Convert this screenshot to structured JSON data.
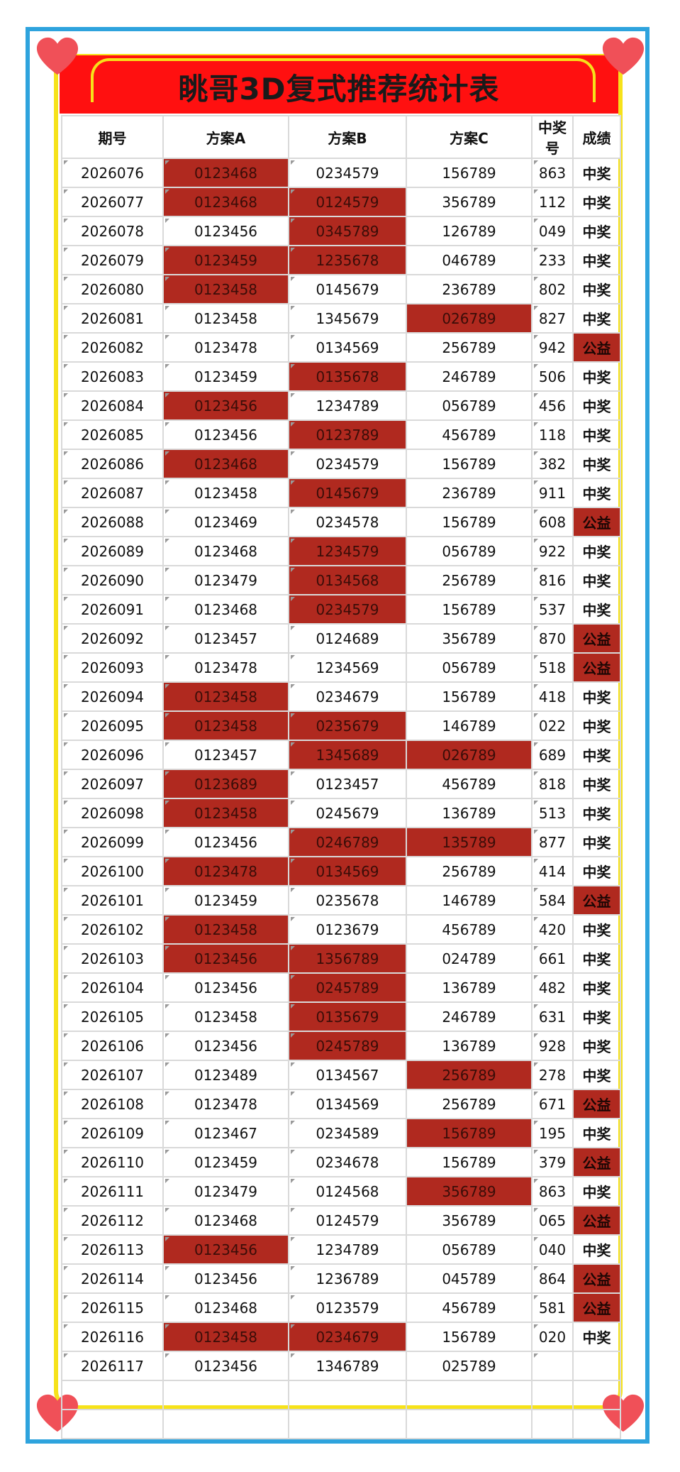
{
  "title": "眺哥3D复式推荐统计表",
  "colors": {
    "outer_border": "#2ea3dd",
    "inner_border": "#f6e21a",
    "title_bg": "#ff1010",
    "highlight": "#b0291f",
    "heart": "#f05058"
  },
  "icons": [
    "heart-icon"
  ],
  "headers": [
    "期号",
    "方案A",
    "方案B",
    "方案C",
    "中奖号",
    "成绩"
  ],
  "rows": [
    {
      "issue": "2026076",
      "a": "0123468",
      "b": "0234579",
      "c": "156789",
      "win": "863",
      "result": "中奖",
      "ha": true,
      "hb": false,
      "hc": false,
      "hr": false
    },
    {
      "issue": "2026077",
      "a": "0123468",
      "b": "0124579",
      "c": "356789",
      "win": "112",
      "result": "中奖",
      "ha": true,
      "hb": true,
      "hc": false,
      "hr": false
    },
    {
      "issue": "2026078",
      "a": "0123456",
      "b": "0345789",
      "c": "126789",
      "win": "049",
      "result": "中奖",
      "ha": false,
      "hb": true,
      "hc": false,
      "hr": false
    },
    {
      "issue": "2026079",
      "a": "0123459",
      "b": "1235678",
      "c": "046789",
      "win": "233",
      "result": "中奖",
      "ha": true,
      "hb": true,
      "hc": false,
      "hr": false
    },
    {
      "issue": "2026080",
      "a": "0123458",
      "b": "0145679",
      "c": "236789",
      "win": "802",
      "result": "中奖",
      "ha": true,
      "hb": false,
      "hc": false,
      "hr": false
    },
    {
      "issue": "2026081",
      "a": "0123458",
      "b": "1345679",
      "c": "026789",
      "win": "827",
      "result": "中奖",
      "ha": false,
      "hb": false,
      "hc": true,
      "hr": false
    },
    {
      "issue": "2026082",
      "a": "0123478",
      "b": "0134569",
      "c": "256789",
      "win": "942",
      "result": "公益",
      "ha": false,
      "hb": false,
      "hc": false,
      "hr": true
    },
    {
      "issue": "2026083",
      "a": "0123459",
      "b": "0135678",
      "c": "246789",
      "win": "506",
      "result": "中奖",
      "ha": false,
      "hb": true,
      "hc": false,
      "hr": false
    },
    {
      "issue": "2026084",
      "a": "0123456",
      "b": "1234789",
      "c": "056789",
      "win": "456",
      "result": "中奖",
      "ha": true,
      "hb": false,
      "hc": false,
      "hr": false
    },
    {
      "issue": "2026085",
      "a": "0123456",
      "b": "0123789",
      "c": "456789",
      "win": "118",
      "result": "中奖",
      "ha": false,
      "hb": true,
      "hc": false,
      "hr": false
    },
    {
      "issue": "2026086",
      "a": "0123468",
      "b": "0234579",
      "c": "156789",
      "win": "382",
      "result": "中奖",
      "ha": true,
      "hb": false,
      "hc": false,
      "hr": false
    },
    {
      "issue": "2026087",
      "a": "0123458",
      "b": "0145679",
      "c": "236789",
      "win": "911",
      "result": "中奖",
      "ha": false,
      "hb": true,
      "hc": false,
      "hr": false
    },
    {
      "issue": "2026088",
      "a": "0123469",
      "b": "0234578",
      "c": "156789",
      "win": "608",
      "result": "公益",
      "ha": false,
      "hb": false,
      "hc": false,
      "hr": true
    },
    {
      "issue": "2026089",
      "a": "0123468",
      "b": "1234579",
      "c": "056789",
      "win": "922",
      "result": "中奖",
      "ha": false,
      "hb": true,
      "hc": false,
      "hr": false
    },
    {
      "issue": "2026090",
      "a": "0123479",
      "b": "0134568",
      "c": "256789",
      "win": "816",
      "result": "中奖",
      "ha": false,
      "hb": true,
      "hc": false,
      "hr": false
    },
    {
      "issue": "2026091",
      "a": "0123468",
      "b": "0234579",
      "c": "156789",
      "win": "537",
      "result": "中奖",
      "ha": false,
      "hb": true,
      "hc": false,
      "hr": false
    },
    {
      "issue": "2026092",
      "a": "0123457",
      "b": "0124689",
      "c": "356789",
      "win": "870",
      "result": "公益",
      "ha": false,
      "hb": false,
      "hc": false,
      "hr": true
    },
    {
      "issue": "2026093",
      "a": "0123478",
      "b": "1234569",
      "c": "056789",
      "win": "518",
      "result": "公益",
      "ha": false,
      "hb": false,
      "hc": false,
      "hr": true
    },
    {
      "issue": "2026094",
      "a": "0123458",
      "b": "0234679",
      "c": "156789",
      "win": "418",
      "result": "中奖",
      "ha": true,
      "hb": false,
      "hc": false,
      "hr": false
    },
    {
      "issue": "2026095",
      "a": "0123458",
      "b": "0235679",
      "c": "146789",
      "win": "022",
      "result": "中奖",
      "ha": true,
      "hb": true,
      "hc": false,
      "hr": false
    },
    {
      "issue": "2026096",
      "a": "0123457",
      "b": "1345689",
      "c": "026789",
      "win": "689",
      "result": "中奖",
      "ha": false,
      "hb": true,
      "hc": true,
      "hr": false
    },
    {
      "issue": "2026097",
      "a": "0123689",
      "b": "0123457",
      "c": "456789",
      "win": "818",
      "result": "中奖",
      "ha": true,
      "hb": false,
      "hc": false,
      "hr": false
    },
    {
      "issue": "2026098",
      "a": "0123458",
      "b": "0245679",
      "c": "136789",
      "win": "513",
      "result": "中奖",
      "ha": true,
      "hb": false,
      "hc": false,
      "hr": false
    },
    {
      "issue": "2026099",
      "a": "0123456",
      "b": "0246789",
      "c": "135789",
      "win": "877",
      "result": "中奖",
      "ha": false,
      "hb": true,
      "hc": true,
      "hr": false
    },
    {
      "issue": "2026100",
      "a": "0123478",
      "b": "0134569",
      "c": "256789",
      "win": "414",
      "result": "中奖",
      "ha": true,
      "hb": true,
      "hc": false,
      "hr": false
    },
    {
      "issue": "2026101",
      "a": "0123459",
      "b": "0235678",
      "c": "146789",
      "win": "584",
      "result": "公益",
      "ha": false,
      "hb": false,
      "hc": false,
      "hr": true
    },
    {
      "issue": "2026102",
      "a": "0123458",
      "b": "0123679",
      "c": "456789",
      "win": "420",
      "result": "中奖",
      "ha": true,
      "hb": false,
      "hc": false,
      "hr": false
    },
    {
      "issue": "2026103",
      "a": "0123456",
      "b": "1356789",
      "c": "024789",
      "win": "661",
      "result": "中奖",
      "ha": true,
      "hb": true,
      "hc": false,
      "hr": false
    },
    {
      "issue": "2026104",
      "a": "0123456",
      "b": "0245789",
      "c": "136789",
      "win": "482",
      "result": "中奖",
      "ha": false,
      "hb": true,
      "hc": false,
      "hr": false
    },
    {
      "issue": "2026105",
      "a": "0123458",
      "b": "0135679",
      "c": "246789",
      "win": "631",
      "result": "中奖",
      "ha": false,
      "hb": true,
      "hc": false,
      "hr": false
    },
    {
      "issue": "2026106",
      "a": "0123456",
      "b": "0245789",
      "c": "136789",
      "win": "928",
      "result": "中奖",
      "ha": false,
      "hb": true,
      "hc": false,
      "hr": false
    },
    {
      "issue": "2026107",
      "a": "0123489",
      "b": "0134567",
      "c": "256789",
      "win": "278",
      "result": "中奖",
      "ha": false,
      "hb": false,
      "hc": true,
      "hr": false
    },
    {
      "issue": "2026108",
      "a": "0123478",
      "b": "0134569",
      "c": "256789",
      "win": "671",
      "result": "公益",
      "ha": false,
      "hb": false,
      "hc": false,
      "hr": true
    },
    {
      "issue": "2026109",
      "a": "0123467",
      "b": "0234589",
      "c": "156789",
      "win": "195",
      "result": "中奖",
      "ha": false,
      "hb": false,
      "hc": true,
      "hr": false
    },
    {
      "issue": "2026110",
      "a": "0123459",
      "b": "0234678",
      "c": "156789",
      "win": "379",
      "result": "公益",
      "ha": false,
      "hb": false,
      "hc": false,
      "hr": true
    },
    {
      "issue": "2026111",
      "a": "0123479",
      "b": "0124568",
      "c": "356789",
      "win": "863",
      "result": "中奖",
      "ha": false,
      "hb": false,
      "hc": true,
      "hr": false
    },
    {
      "issue": "2026112",
      "a": "0123468",
      "b": "0124579",
      "c": "356789",
      "win": "065",
      "result": "公益",
      "ha": false,
      "hb": false,
      "hc": false,
      "hr": true
    },
    {
      "issue": "2026113",
      "a": "0123456",
      "b": "1234789",
      "c": "056789",
      "win": "040",
      "result": "中奖",
      "ha": true,
      "hb": false,
      "hc": false,
      "hr": false
    },
    {
      "issue": "2026114",
      "a": "0123456",
      "b": "1236789",
      "c": "045789",
      "win": "864",
      "result": "公益",
      "ha": false,
      "hb": false,
      "hc": false,
      "hr": true
    },
    {
      "issue": "2026115",
      "a": "0123468",
      "b": "0123579",
      "c": "456789",
      "win": "581",
      "result": "公益",
      "ha": false,
      "hb": false,
      "hc": false,
      "hr": true
    },
    {
      "issue": "2026116",
      "a": "0123458",
      "b": "0234679",
      "c": "156789",
      "win": "020",
      "result": "中奖",
      "ha": true,
      "hb": true,
      "hc": false,
      "hr": false
    },
    {
      "issue": "2026117",
      "a": "0123456",
      "b": "1346789",
      "c": "025789",
      "win": "",
      "result": "",
      "ha": false,
      "hb": false,
      "hc": false,
      "hr": false
    }
  ]
}
